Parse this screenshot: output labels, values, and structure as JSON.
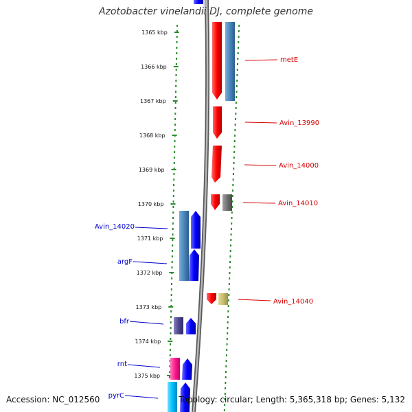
{
  "title": "Azotobacter vinelandii DJ, complete genome",
  "footer": {
    "accession": "Accession: NC_012560",
    "summary": "Topology: circular; Length: 5,365,318 bp; Genes: 5,132"
  },
  "colors": {
    "label_right": "#d40000",
    "label_left": "#0000c8",
    "dots": "#2a8a2a",
    "axis": "#8a8a8a"
  },
  "ticks": [
    "1365 kbp",
    "1366 kbp",
    "1367 kbp",
    "1368 kbp",
    "1369 kbp",
    "1370 kbp",
    "1371 kbp",
    "1372 kbp",
    "1373 kbp",
    "1374 kbp",
    "1375 kbp"
  ],
  "labels_right": [
    {
      "name": "label-metE",
      "text": "metE"
    },
    {
      "name": "label-avin-13990",
      "text": "Avin_13990"
    },
    {
      "name": "label-avin-14000",
      "text": "Avin_14000"
    },
    {
      "name": "label-avin-14010",
      "text": "Avin_14010"
    },
    {
      "name": "label-avin-14040",
      "text": "Avin_14040"
    }
  ],
  "labels_left": [
    {
      "name": "label-avin-14020",
      "text": "Avin_14020"
    },
    {
      "name": "label-argF",
      "text": "argF"
    },
    {
      "name": "label-bfr",
      "text": "bfr"
    },
    {
      "name": "label-rnt",
      "text": "rnt"
    },
    {
      "name": "label-pyrC",
      "text": "pyrC"
    }
  ]
}
